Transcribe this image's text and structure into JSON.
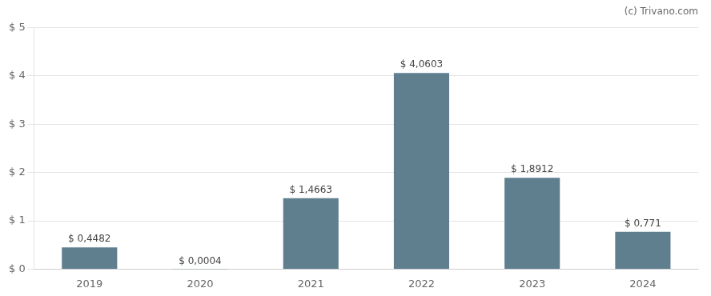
{
  "chart_data": {
    "type": "bar",
    "annotations": [
      "(c) Trivano.com"
    ],
    "categories": [
      "2019",
      "2020",
      "2021",
      "2022",
      "2023",
      "2024"
    ],
    "values": [
      0.4482,
      0.0004,
      1.4663,
      4.0603,
      1.8912,
      0.771
    ],
    "value_labels": [
      "$ 0,4482",
      "$ 0,0004",
      "$ 1,4663",
      "$ 4,0603",
      "$ 1,8912",
      "$ 0,771"
    ],
    "data_labels": true,
    "color": "#5f7f8f",
    "ylim": [
      0,
      5
    ],
    "yticks": [
      {
        "value": 0,
        "label": "$ 0"
      },
      {
        "value": 1,
        "label": "$ 1"
      },
      {
        "value": 2,
        "label": "$ 2"
      },
      {
        "value": 3,
        "label": "$ 3"
      },
      {
        "value": 4,
        "label": "$ 4"
      },
      {
        "value": 5,
        "label": "$ 5"
      }
    ],
    "grid": true
  }
}
